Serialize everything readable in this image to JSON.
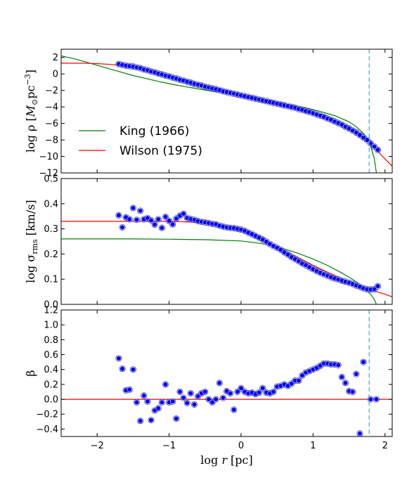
{
  "chart_data": [
    {
      "panel": "density",
      "type": "scatter",
      "ylabel_parts": [
        "log ρ [",
        "M",
        "⊙",
        "pc",
        "−3",
        "]"
      ],
      "xlim": [
        -2.5,
        2.1
      ],
      "ylim": [
        -12,
        3
      ],
      "yticks": [
        -12,
        -10,
        -8,
        -6,
        -4,
        -2,
        0,
        2
      ],
      "ytick_labels": [
        "−12",
        "−10",
        "−8",
        "−6",
        "−4",
        "−2",
        "0",
        "2"
      ],
      "xticks": [
        -2,
        -1,
        0,
        1,
        2
      ],
      "legend": {
        "position": "lower-left",
        "entries": [
          {
            "label": "King (1966)",
            "color": "#008000"
          },
          {
            "label": "Wilson (1975)",
            "color": "#ff0000"
          }
        ]
      },
      "series": [
        {
          "name": "King (1966)",
          "kind": "line",
          "color": "#008000",
          "x": [
            -2.5,
            -2.3,
            -2.1,
            -1.9,
            -1.7,
            -1.5,
            -1.3,
            -1.1,
            -0.9,
            -0.7,
            -0.5,
            -0.3,
            -0.1,
            0.1,
            0.3,
            0.5,
            0.7,
            0.9,
            1.1,
            1.3,
            1.5,
            1.6,
            1.7,
            1.75,
            1.8,
            1.85,
            1.88
          ],
          "y": [
            2.2,
            1.8,
            1.3,
            0.8,
            0.3,
            -0.2,
            -0.6,
            -1.0,
            -1.35,
            -1.65,
            -1.95,
            -2.25,
            -2.5,
            -2.8,
            -3.1,
            -3.4,
            -3.75,
            -4.1,
            -4.55,
            -5.05,
            -5.8,
            -6.4,
            -7.2,
            -7.8,
            -8.8,
            -10.2,
            -12.0
          ]
        },
        {
          "name": "Wilson (1975)",
          "kind": "line",
          "color": "#ff0000",
          "x": [
            -2.5,
            -2.2,
            -2.0,
            -1.8,
            -1.7,
            -1.6,
            -1.4,
            -1.2,
            -1.0,
            -0.8,
            -0.6,
            -0.4,
            -0.2,
            0.0,
            0.2,
            0.4,
            0.6,
            0.8,
            1.0,
            1.2,
            1.4,
            1.6,
            1.7,
            1.8,
            1.9,
            2.0,
            2.1
          ],
          "y": [
            1.3,
            1.3,
            1.25,
            1.15,
            1.05,
            0.9,
            0.55,
            0.1,
            -0.35,
            -0.8,
            -1.2,
            -1.6,
            -2.0,
            -2.4,
            -2.8,
            -3.25,
            -3.7,
            -4.2,
            -4.8,
            -5.5,
            -6.3,
            -7.3,
            -7.9,
            -8.6,
            -9.4,
            -10.3,
            -11.2
          ]
        },
        {
          "name": "",
          "kind": "points",
          "x": [
            -1.7,
            -1.65,
            -1.6,
            -1.55,
            -1.5,
            -1.45,
            -1.4,
            -1.35,
            -1.3,
            -1.25,
            -1.2,
            -1.15,
            -1.1,
            -1.05,
            -1.0,
            -0.95,
            -0.9,
            -0.85,
            -0.8,
            -0.75,
            -0.7,
            -0.65,
            -0.6,
            -0.55,
            -0.5,
            -0.45,
            -0.4,
            -0.35,
            -0.3,
            -0.25,
            -0.2,
            -0.15,
            -0.1,
            -0.05,
            0.0,
            0.05,
            0.1,
            0.15,
            0.2,
            0.25,
            0.3,
            0.35,
            0.4,
            0.45,
            0.5,
            0.55,
            0.6,
            0.65,
            0.7,
            0.75,
            0.8,
            0.85,
            0.9,
            0.95,
            1.0,
            1.05,
            1.1,
            1.15,
            1.2,
            1.25,
            1.3,
            1.35,
            1.4,
            1.45,
            1.5,
            1.55,
            1.6,
            1.65,
            1.7,
            1.75,
            1.8,
            1.85,
            1.9
          ],
          "y": [
            1.2,
            1.1,
            1.0,
            0.95,
            0.9,
            0.8,
            0.7,
            0.55,
            0.45,
            0.3,
            0.2,
            0.05,
            -0.05,
            -0.2,
            -0.3,
            -0.45,
            -0.55,
            -0.7,
            -0.8,
            -0.95,
            -1.05,
            -1.2,
            -1.3,
            -1.4,
            -1.55,
            -1.65,
            -1.75,
            -1.85,
            -1.95,
            -2.1,
            -2.2,
            -2.3,
            -2.4,
            -2.5,
            -2.6,
            -2.7,
            -2.8,
            -2.9,
            -3.0,
            -3.1,
            -3.2,
            -3.3,
            -3.4,
            -3.5,
            -3.6,
            -3.7,
            -3.8,
            -3.9,
            -4.0,
            -4.1,
            -4.25,
            -4.35,
            -4.5,
            -4.6,
            -4.75,
            -4.9,
            -5.05,
            -5.2,
            -5.4,
            -5.55,
            -5.75,
            -5.95,
            -6.15,
            -6.4,
            -6.6,
            -6.85,
            -7.1,
            -7.4,
            -7.7,
            -8.0,
            -8.4,
            -8.8,
            -9.2
          ]
        }
      ]
    },
    {
      "panel": "dispersion",
      "type": "scatter",
      "ylabel_parts": [
        "log σ",
        "rms",
        " [km/s]"
      ],
      "xlim": [
        -2.5,
        2.1
      ],
      "ylim": [
        0.0,
        0.5
      ],
      "yticks": [
        0.0,
        0.1,
        0.2,
        0.3,
        0.4,
        0.5
      ],
      "ytick_labels": [
        "0.0",
        "0.1",
        "0.2",
        "0.3",
        "0.4",
        "0.5"
      ],
      "xticks": [
        -2,
        -1,
        0,
        1,
        2
      ],
      "series": [
        {
          "name": "King (1966)",
          "kind": "line",
          "color": "#008000",
          "x": [
            -2.5,
            -2.0,
            -1.5,
            -1.0,
            -0.5,
            0.0,
            0.2,
            0.4,
            0.6,
            0.8,
            1.0,
            1.2,
            1.4,
            1.6,
            1.7,
            1.75,
            1.8,
            1.85,
            1.88
          ],
          "y": [
            0.26,
            0.26,
            0.26,
            0.259,
            0.257,
            0.252,
            0.245,
            0.236,
            0.22,
            0.202,
            0.18,
            0.155,
            0.125,
            0.09,
            0.068,
            0.055,
            0.04,
            0.02,
            0.0
          ]
        },
        {
          "name": "Wilson (1975)",
          "kind": "line",
          "color": "#ff0000",
          "x": [
            -2.5,
            -2.0,
            -1.5,
            -1.0,
            -0.7,
            -0.4,
            -0.2,
            0.0,
            0.2,
            0.4,
            0.6,
            0.8,
            1.0,
            1.2,
            1.4,
            1.6,
            1.8,
            2.0,
            2.1
          ],
          "y": [
            0.33,
            0.33,
            0.33,
            0.33,
            0.327,
            0.32,
            0.31,
            0.295,
            0.272,
            0.245,
            0.215,
            0.185,
            0.155,
            0.128,
            0.102,
            0.078,
            0.058,
            0.04,
            0.03
          ]
        },
        {
          "name": "",
          "kind": "points",
          "x": [
            -1.7,
            -1.65,
            -1.6,
            -1.55,
            -1.5,
            -1.45,
            -1.4,
            -1.35,
            -1.3,
            -1.25,
            -1.2,
            -1.15,
            -1.1,
            -1.05,
            -1.0,
            -0.95,
            -0.9,
            -0.85,
            -0.8,
            -0.75,
            -0.7,
            -0.65,
            -0.6,
            -0.55,
            -0.5,
            -0.45,
            -0.4,
            -0.35,
            -0.3,
            -0.25,
            -0.2,
            -0.15,
            -0.1,
            -0.05,
            0.0,
            0.05,
            0.1,
            0.15,
            0.2,
            0.25,
            0.3,
            0.35,
            0.4,
            0.45,
            0.5,
            0.55,
            0.6,
            0.65,
            0.7,
            0.75,
            0.8,
            0.85,
            0.9,
            0.95,
            1.0,
            1.05,
            1.1,
            1.15,
            1.2,
            1.25,
            1.3,
            1.35,
            1.4,
            1.45,
            1.5,
            1.55,
            1.6,
            1.65,
            1.7,
            1.75,
            1.8,
            1.85,
            1.9
          ],
          "y": [
            0.354,
            0.306,
            0.346,
            0.338,
            0.383,
            0.336,
            0.372,
            0.338,
            0.343,
            0.334,
            0.317,
            0.338,
            0.304,
            0.348,
            0.332,
            0.318,
            0.341,
            0.352,
            0.36,
            0.343,
            0.339,
            0.336,
            0.331,
            0.328,
            0.326,
            0.323,
            0.32,
            0.318,
            0.313,
            0.309,
            0.306,
            0.304,
            0.303,
            0.3,
            0.297,
            0.292,
            0.285,
            0.279,
            0.272,
            0.265,
            0.258,
            0.249,
            0.24,
            0.232,
            0.225,
            0.217,
            0.207,
            0.198,
            0.188,
            0.18,
            0.172,
            0.163,
            0.156,
            0.148,
            0.14,
            0.133,
            0.126,
            0.12,
            0.114,
            0.108,
            0.103,
            0.099,
            0.094,
            0.09,
            0.086,
            0.081,
            0.075,
            0.07,
            0.064,
            0.06,
            0.059,
            0.06,
            0.072
          ]
        }
      ]
    },
    {
      "panel": "anisotropy",
      "type": "scatter",
      "ylabel": "β",
      "xlabel_parts": [
        "log ",
        "r",
        " [pc]"
      ],
      "xlim": [
        -2.5,
        2.1
      ],
      "ylim": [
        -0.5,
        1.2
      ],
      "yticks": [
        -0.4,
        -0.2,
        0.0,
        0.2,
        0.4,
        0.6,
        0.8,
        1.0,
        1.2
      ],
      "ytick_labels": [
        "−0.4",
        "−0.2",
        "0.0",
        "0.2",
        "0.4",
        "0.6",
        "0.8",
        "1.0",
        "1.2"
      ],
      "xticks": [
        -2,
        -1,
        0,
        1,
        2
      ],
      "xtick_labels": [
        "−2",
        "−1",
        "0",
        "1",
        "2"
      ],
      "series": [
        {
          "name": "",
          "kind": "line",
          "color": "#ff0000",
          "x": [
            -2.5,
            2.1
          ],
          "y": [
            0.0,
            0.0
          ]
        },
        {
          "name": "",
          "kind": "points",
          "x": [
            -1.7,
            -1.65,
            -1.6,
            -1.55,
            -1.5,
            -1.45,
            -1.4,
            -1.35,
            -1.3,
            -1.25,
            -1.2,
            -1.15,
            -1.1,
            -1.05,
            -1.0,
            -0.95,
            -0.9,
            -0.85,
            -0.8,
            -0.75,
            -0.7,
            -0.65,
            -0.6,
            -0.55,
            -0.5,
            -0.45,
            -0.4,
            -0.35,
            -0.3,
            -0.25,
            -0.2,
            -0.15,
            -0.1,
            -0.05,
            0.0,
            0.05,
            0.1,
            0.15,
            0.2,
            0.25,
            0.3,
            0.35,
            0.4,
            0.45,
            0.5,
            0.55,
            0.6,
            0.65,
            0.7,
            0.75,
            0.8,
            0.85,
            0.9,
            0.95,
            1.0,
            1.05,
            1.1,
            1.15,
            1.2,
            1.25,
            1.3,
            1.35,
            1.4,
            1.45,
            1.5,
            1.55,
            1.6,
            1.65,
            1.7,
            1.8,
            1.88
          ],
          "y": [
            0.55,
            0.41,
            0.12,
            0.13,
            0.4,
            -0.04,
            -0.29,
            0.05,
            -0.03,
            -0.28,
            -0.15,
            -0.12,
            -0.04,
            0.2,
            -0.04,
            -0.03,
            -0.26,
            0.1,
            0.02,
            -0.05,
            0.08,
            -0.07,
            0.04,
            0.08,
            0.1,
            0.0,
            -0.04,
            0.0,
            0.22,
            0.02,
            0.11,
            0.08,
            -0.14,
            0.1,
            0.15,
            0.1,
            0.08,
            0.09,
            0.07,
            0.09,
            0.15,
            0.09,
            0.08,
            0.1,
            0.17,
            0.18,
            0.2,
            0.18,
            0.21,
            0.25,
            0.25,
            0.32,
            0.36,
            0.38,
            0.4,
            0.42,
            0.45,
            0.48,
            0.48,
            0.47,
            0.47,
            0.46,
            0.3,
            0.22,
            0.11,
            0.1,
            0.34,
            -0.46,
            0.5,
            0.0,
            0.0
          ]
        }
      ]
    }
  ],
  "vline": {
    "x": 1.78,
    "color": "#17becf"
  }
}
